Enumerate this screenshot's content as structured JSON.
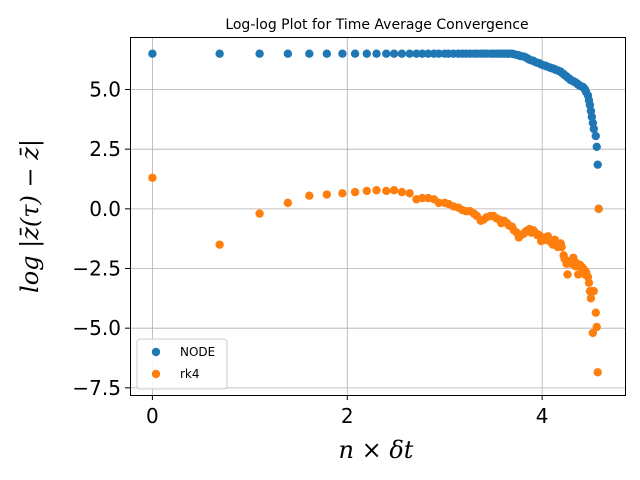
{
  "chart_data": {
    "type": "scatter",
    "title": "Log-log Plot for Time Average Convergence",
    "xlabel": "n × δt",
    "ylabel": "log |z̄(τ) − z̄|",
    "xlim": [
      -0.23,
      4.85
    ],
    "ylim": [
      -7.8,
      7.2
    ],
    "xticks": [
      0,
      2,
      4
    ],
    "xtick_labels": [
      "0",
      "2",
      "4"
    ],
    "yticks": [
      5.0,
      2.5,
      0.0,
      -2.5,
      -5.0,
      -7.5
    ],
    "ytick_labels": [
      "5.0",
      "2.5",
      "0.0",
      "−2.5",
      "−5.0",
      "−7.5"
    ],
    "grid": true,
    "legend_position": "bottom-left",
    "series": [
      {
        "name": "NODE",
        "color": "#1f77b4",
        "points": [
          [
            0.0,
            6.5
          ],
          [
            0.69,
            6.5
          ],
          [
            1.1,
            6.5
          ],
          [
            1.39,
            6.5
          ],
          [
            1.61,
            6.5
          ],
          [
            1.79,
            6.5
          ],
          [
            1.95,
            6.5
          ],
          [
            2.08,
            6.5
          ],
          [
            2.2,
            6.5
          ],
          [
            2.3,
            6.5
          ],
          [
            2.4,
            6.5
          ],
          [
            2.48,
            6.5
          ],
          [
            2.56,
            6.5
          ],
          [
            2.64,
            6.5
          ],
          [
            2.71,
            6.5
          ],
          [
            2.77,
            6.5
          ],
          [
            2.83,
            6.5
          ],
          [
            2.89,
            6.5
          ],
          [
            2.94,
            6.5
          ],
          [
            3.0,
            6.5
          ],
          [
            3.04,
            6.5
          ],
          [
            3.09,
            6.5
          ],
          [
            3.14,
            6.5
          ],
          [
            3.18,
            6.5
          ],
          [
            3.22,
            6.5
          ],
          [
            3.26,
            6.5
          ],
          [
            3.3,
            6.5
          ],
          [
            3.33,
            6.5
          ],
          [
            3.37,
            6.5
          ],
          [
            3.4,
            6.5
          ],
          [
            3.43,
            6.5
          ],
          [
            3.47,
            6.5
          ],
          [
            3.5,
            6.5
          ],
          [
            3.53,
            6.5
          ],
          [
            3.56,
            6.5
          ],
          [
            3.58,
            6.5
          ],
          [
            3.61,
            6.5
          ],
          [
            3.64,
            6.5
          ],
          [
            3.66,
            6.5
          ],
          [
            3.69,
            6.5
          ],
          [
            3.71,
            6.48
          ],
          [
            3.74,
            6.45
          ],
          [
            3.76,
            6.43
          ],
          [
            3.78,
            6.4
          ],
          [
            3.81,
            6.38
          ],
          [
            3.83,
            6.35
          ],
          [
            3.85,
            6.3
          ],
          [
            3.87,
            6.25
          ],
          [
            3.89,
            6.22
          ],
          [
            3.91,
            6.2
          ],
          [
            3.93,
            6.15
          ],
          [
            3.95,
            6.12
          ],
          [
            3.97,
            6.1
          ],
          [
            3.99,
            6.05
          ],
          [
            4.01,
            6.02
          ],
          [
            4.03,
            6.0
          ],
          [
            4.04,
            5.98
          ],
          [
            4.06,
            5.95
          ],
          [
            4.08,
            5.92
          ],
          [
            4.09,
            5.9
          ],
          [
            4.11,
            5.88
          ],
          [
            4.13,
            5.85
          ],
          [
            4.14,
            5.82
          ],
          [
            4.16,
            5.8
          ],
          [
            4.17,
            5.78
          ],
          [
            4.19,
            5.75
          ],
          [
            4.2,
            5.7
          ],
          [
            4.22,
            5.65
          ],
          [
            4.23,
            5.6
          ],
          [
            4.25,
            5.55
          ],
          [
            4.26,
            5.5
          ],
          [
            4.28,
            5.45
          ],
          [
            4.29,
            5.4
          ],
          [
            4.3,
            5.38
          ],
          [
            4.32,
            5.35
          ],
          [
            4.33,
            5.32
          ],
          [
            4.34,
            5.3
          ],
          [
            4.36,
            5.25
          ],
          [
            4.37,
            5.2
          ],
          [
            4.38,
            5.18
          ],
          [
            4.39,
            5.15
          ],
          [
            4.41,
            5.12
          ],
          [
            4.42,
            5.1
          ],
          [
            4.43,
            5.05
          ],
          [
            4.44,
            5.0
          ],
          [
            4.45,
            4.9
          ],
          [
            4.47,
            4.75
          ],
          [
            4.48,
            4.55
          ],
          [
            4.49,
            4.35
          ],
          [
            4.5,
            4.1
          ],
          [
            4.51,
            3.85
          ],
          [
            4.52,
            3.6
          ],
          [
            4.53,
            3.35
          ],
          [
            4.55,
            3.05
          ],
          [
            4.56,
            2.6
          ],
          [
            4.57,
            1.85
          ],
          [
            4.58,
            0.0
          ]
        ]
      },
      {
        "name": "rk4",
        "color": "#ff7f0e",
        "points": [
          [
            0.0,
            1.3
          ],
          [
            0.69,
            -1.5
          ],
          [
            1.1,
            -0.2
          ],
          [
            1.39,
            0.25
          ],
          [
            1.61,
            0.55
          ],
          [
            1.79,
            0.6
          ],
          [
            1.95,
            0.65
          ],
          [
            2.08,
            0.7
          ],
          [
            2.2,
            0.75
          ],
          [
            2.3,
            0.78
          ],
          [
            2.4,
            0.75
          ],
          [
            2.48,
            0.78
          ],
          [
            2.56,
            0.7
          ],
          [
            2.64,
            0.65
          ],
          [
            2.71,
            0.4
          ],
          [
            2.77,
            0.45
          ],
          [
            2.83,
            0.45
          ],
          [
            2.89,
            0.4
          ],
          [
            2.94,
            0.25
          ],
          [
            3.0,
            0.25
          ],
          [
            3.04,
            0.2
          ],
          [
            3.09,
            0.1
          ],
          [
            3.14,
            0.05
          ],
          [
            3.18,
            -0.05
          ],
          [
            3.22,
            -0.1
          ],
          [
            3.26,
            -0.1
          ],
          [
            3.3,
            -0.2
          ],
          [
            3.33,
            -0.3
          ],
          [
            3.37,
            -0.5
          ],
          [
            3.4,
            -0.45
          ],
          [
            3.43,
            -0.35
          ],
          [
            3.47,
            -0.3
          ],
          [
            3.5,
            -0.3
          ],
          [
            3.53,
            -0.4
          ],
          [
            3.56,
            -0.45
          ],
          [
            3.58,
            -0.6
          ],
          [
            3.61,
            -0.5
          ],
          [
            3.64,
            -0.6
          ],
          [
            3.66,
            -0.7
          ],
          [
            3.69,
            -0.75
          ],
          [
            3.71,
            -0.9
          ],
          [
            3.74,
            -1.0
          ],
          [
            3.76,
            -1.2
          ],
          [
            3.78,
            -1.1
          ],
          [
            3.81,
            -1.05
          ],
          [
            3.83,
            -0.95
          ],
          [
            3.85,
            -0.9
          ],
          [
            3.87,
            -0.85
          ],
          [
            3.89,
            -1.0
          ],
          [
            3.91,
            -0.9
          ],
          [
            3.93,
            -1.0
          ],
          [
            3.95,
            -1.1
          ],
          [
            3.97,
            -1.1
          ],
          [
            3.99,
            -1.35
          ],
          [
            4.01,
            -1.3
          ],
          [
            4.03,
            -1.2
          ],
          [
            4.04,
            -1.3
          ],
          [
            4.06,
            -1.15
          ],
          [
            4.08,
            -1.3
          ],
          [
            4.09,
            -1.4
          ],
          [
            4.11,
            -1.5
          ],
          [
            4.13,
            -1.3
          ],
          [
            4.14,
            -1.4
          ],
          [
            4.16,
            -1.6
          ],
          [
            4.17,
            -1.5
          ],
          [
            4.19,
            -1.45
          ],
          [
            4.2,
            -1.6
          ],
          [
            4.22,
            -1.95
          ],
          [
            4.23,
            -2.1
          ],
          [
            4.25,
            -2.3
          ],
          [
            4.26,
            -2.75
          ],
          [
            4.28,
            -2.2
          ],
          [
            4.29,
            -2.25
          ],
          [
            4.3,
            -2.3
          ],
          [
            4.32,
            -2.05
          ],
          [
            4.33,
            -2.2
          ],
          [
            4.34,
            -2.4
          ],
          [
            4.36,
            -2.3
          ],
          [
            4.37,
            -2.75
          ],
          [
            4.38,
            -2.4
          ],
          [
            4.39,
            -2.35
          ],
          [
            4.41,
            -2.45
          ],
          [
            4.42,
            -2.5
          ],
          [
            4.43,
            -2.55
          ],
          [
            4.44,
            -2.75
          ],
          [
            4.45,
            -2.65
          ],
          [
            4.47,
            -2.85
          ],
          [
            4.48,
            -3.1
          ],
          [
            4.49,
            -3.45
          ],
          [
            4.5,
            -3.75
          ],
          [
            4.51,
            -3.45
          ],
          [
            4.52,
            -5.2
          ],
          [
            4.53,
            -3.45
          ],
          [
            4.55,
            -4.35
          ],
          [
            4.56,
            -4.95
          ],
          [
            4.57,
            -6.85
          ],
          [
            4.58,
            0.0
          ]
        ]
      }
    ]
  }
}
